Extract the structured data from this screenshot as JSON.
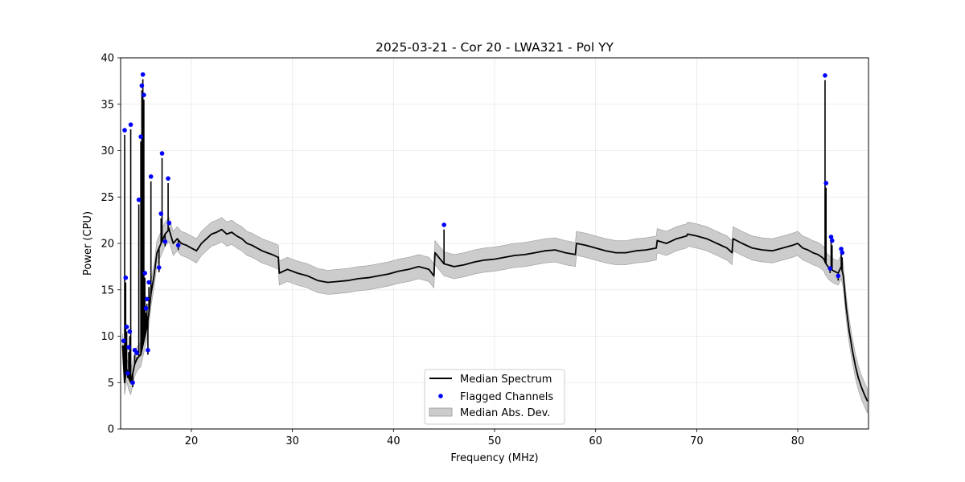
{
  "chart_data": {
    "type": "line",
    "title": "2025-03-21 - Cor 20 - LWA321 - Pol YY",
    "xlabel": "Frequency (MHz)",
    "ylabel": "Power (CPU)",
    "xlim": [
      13,
      87
    ],
    "ylim": [
      0,
      40
    ],
    "xticks": [
      20,
      30,
      40,
      50,
      60,
      70,
      80
    ],
    "yticks": [
      0,
      5,
      10,
      15,
      20,
      25,
      30,
      35,
      40
    ],
    "grid": true,
    "legend_position": "bottom-center",
    "colors": {
      "median": "#000000",
      "flagged": "#0000ff",
      "mad_fill": "#cccccc",
      "mad_edge": "#999999"
    },
    "series": [
      {
        "name": "Median Spectrum",
        "kind": "line",
        "x": [
          13.2,
          13.4,
          13.6,
          13.8,
          14.0,
          14.2,
          14.4,
          14.6,
          14.8,
          15.0,
          15.2,
          15.4,
          15.6,
          15.8,
          16.0,
          16.3,
          16.6,
          17.0,
          17.4,
          17.8,
          18.2,
          18.6,
          19.0,
          19.5,
          20.0,
          20.5,
          21.0,
          21.5,
          22.0,
          22.5,
          23.0,
          23.5,
          24.0,
          24.5,
          25.0,
          25.5,
          26.0,
          26.5,
          27.0,
          27.5,
          28.0,
          28.6,
          28.7,
          29.5,
          30.5,
          31.5,
          32.5,
          33.5,
          34.5,
          35.5,
          36.5,
          37.5,
          38.5,
          39.5,
          40.5,
          41.5,
          42.5,
          43.5,
          44.0,
          44.1,
          45.0,
          46.0,
          47.0,
          48.0,
          49.0,
          50.0,
          51.0,
          52.0,
          53.0,
          54.0,
          55.0,
          56.0,
          57.0,
          58.0,
          58.1,
          59.0,
          60.0,
          61.0,
          62.0,
          63.0,
          64.0,
          65.0,
          66.0,
          66.1,
          67.0,
          68.0,
          69.0,
          69.1,
          70.0,
          71.0,
          72.0,
          73.0,
          73.5,
          73.6,
          74.5,
          75.5,
          76.5,
          77.5,
          78.5,
          79.5,
          80.0,
          80.5,
          81.0,
          81.5,
          82.0,
          82.4,
          82.6,
          82.7,
          82.8,
          83.0,
          83.3,
          83.6,
          84.0,
          84.3,
          84.5,
          84.8,
          85.1,
          85.4,
          85.7,
          86.0,
          86.3,
          86.6,
          86.9
        ],
        "values": [
          9.0,
          5.0,
          6.5,
          5.5,
          5.0,
          6.0,
          7.0,
          7.5,
          7.8,
          8.0,
          9.0,
          10.0,
          11.0,
          12.5,
          14.5,
          16.5,
          19.0,
          20.0,
          21.0,
          21.5,
          20.0,
          20.5,
          20.0,
          19.8,
          19.5,
          19.2,
          20.0,
          20.5,
          21.0,
          21.2,
          21.5,
          21.0,
          21.2,
          20.8,
          20.5,
          20.0,
          19.8,
          19.5,
          19.2,
          19.0,
          18.8,
          18.5,
          16.8,
          17.2,
          16.8,
          16.5,
          16.0,
          15.8,
          15.9,
          16.0,
          16.2,
          16.3,
          16.5,
          16.7,
          17.0,
          17.2,
          17.5,
          17.2,
          16.5,
          19.0,
          17.8,
          17.5,
          17.7,
          18.0,
          18.2,
          18.3,
          18.5,
          18.7,
          18.8,
          19.0,
          19.2,
          19.3,
          19.0,
          18.8,
          20.0,
          19.8,
          19.5,
          19.2,
          19.0,
          19.0,
          19.2,
          19.3,
          19.5,
          20.3,
          20.0,
          20.5,
          20.8,
          21.0,
          20.8,
          20.5,
          20.0,
          19.5,
          19.0,
          20.5,
          20.0,
          19.5,
          19.3,
          19.2,
          19.5,
          19.8,
          20.0,
          19.5,
          19.3,
          19.0,
          18.8,
          18.5,
          18.3,
          18.0,
          17.8,
          17.5,
          17.2,
          17.0,
          16.8,
          17.5,
          16.5,
          13.0,
          10.5,
          8.5,
          6.8,
          5.5,
          4.5,
          3.7,
          3.0
        ]
      },
      {
        "name": "Flagged Channels",
        "kind": "scatter",
        "x": [
          13.3,
          13.4,
          13.5,
          13.6,
          13.7,
          13.8,
          13.9,
          14.0,
          14.2,
          14.4,
          14.6,
          14.8,
          15.0,
          15.1,
          15.2,
          15.3,
          15.4,
          15.5,
          15.6,
          15.7,
          15.8,
          16.0,
          16.8,
          17.0,
          17.1,
          17.4,
          17.7,
          17.8,
          18.7,
          45.0,
          82.7,
          82.8,
          83.2,
          83.3,
          83.4,
          84.0,
          84.3,
          84.4
        ],
        "values": [
          9.5,
          32.2,
          16.3,
          11.0,
          6.0,
          8.8,
          10.5,
          32.8,
          5.0,
          8.5,
          8.2,
          24.7,
          31.5,
          37.0,
          38.2,
          36.0,
          16.8,
          13.0,
          14.0,
          8.5,
          15.8,
          27.2,
          17.4,
          23.2,
          29.7,
          20.2,
          27.0,
          22.2,
          19.8,
          22.0,
          38.1,
          26.5,
          17.3,
          20.7,
          20.3,
          16.5,
          19.4,
          19.0
        ]
      },
      {
        "name": "Median Abs. Dev.",
        "kind": "band",
        "dev": 1.3
      }
    ]
  }
}
